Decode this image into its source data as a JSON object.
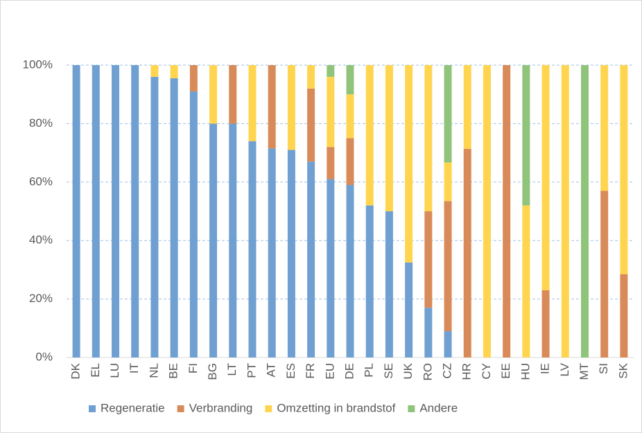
{
  "chart_data": {
    "type": "bar",
    "stacked": true,
    "categories": [
      "DK",
      "EL",
      "LU",
      "IT",
      "NL",
      "BE",
      "FI",
      "BG",
      "LT",
      "PT",
      "AT",
      "ES",
      "FR",
      "EU",
      "DE",
      "PL",
      "SE",
      "UK",
      "RO",
      "CZ",
      "HR",
      "CY",
      "EE",
      "HU",
      "IE",
      "LV",
      "MT",
      "SI",
      "SK"
    ],
    "series": [
      {
        "name": "Regeneratie",
        "color": "#6fa0d1",
        "values": [
          100,
          100,
          100,
          100,
          96,
          95.5,
          91,
          80,
          80,
          74,
          71.5,
          71,
          67,
          61,
          59,
          52,
          50,
          32.5,
          17,
          9,
          0,
          0,
          0,
          0,
          0,
          0,
          0,
          0,
          0
        ]
      },
      {
        "name": "Verbranding",
        "color": "#d98a59",
        "values": [
          0,
          0,
          0,
          0,
          0,
          0,
          9,
          0,
          20,
          0,
          28.5,
          0,
          25,
          11,
          16,
          0,
          0,
          0,
          33,
          44.5,
          71.4,
          0,
          100,
          0,
          23,
          0,
          0,
          57,
          28.5
        ]
      },
      {
        "name": "Omzetting in brandstof",
        "color": "#ffd54f",
        "values": [
          0,
          0,
          0,
          0,
          4,
          4.5,
          0,
          20,
          0,
          26,
          0,
          29,
          8,
          24,
          15,
          48,
          50,
          67.5,
          50,
          13.2,
          28.6,
          100,
          0,
          52,
          77,
          100,
          0,
          43,
          71.5
        ]
      },
      {
        "name": "Andere",
        "color": "#8fc47a",
        "values": [
          0,
          0,
          0,
          0,
          0,
          0,
          0,
          0,
          0,
          0,
          0,
          0,
          0,
          4,
          10,
          0,
          0,
          0,
          0,
          33.3,
          0,
          0,
          0,
          48,
          0,
          0,
          100,
          0,
          0
        ]
      }
    ],
    "ylim": [
      0,
      100
    ],
    "yticks": [
      {
        "value": 0,
        "label": "0%"
      },
      {
        "value": 20,
        "label": "20%"
      },
      {
        "value": 40,
        "label": "40%"
      },
      {
        "value": 60,
        "label": "60%"
      },
      {
        "value": 80,
        "label": "80%"
      },
      {
        "value": 100,
        "label": "100%"
      }
    ],
    "grid": true,
    "legend": "bottom"
  }
}
